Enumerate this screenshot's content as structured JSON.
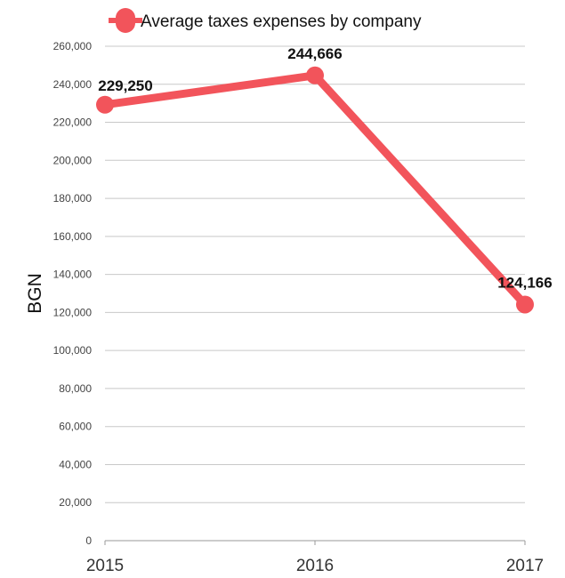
{
  "chart_data": {
    "type": "line",
    "title": "",
    "xlabel": "",
    "ylabel": "BGN",
    "categories": [
      "2015",
      "2016",
      "2017"
    ],
    "series": [
      {
        "name": "Average taxes expenses by company",
        "values": [
          229250,
          244666,
          124166
        ],
        "labels": [
          "229,250",
          "244,666",
          "124,166"
        ],
        "color": "#f2545b"
      }
    ],
    "ylim": [
      0,
      260000
    ],
    "yticks": [
      0,
      20000,
      40000,
      60000,
      80000,
      100000,
      120000,
      140000,
      160000,
      180000,
      200000,
      220000,
      240000,
      260000
    ],
    "ytick_labels": [
      "0",
      "20,000",
      "40,000",
      "60,000",
      "80,000",
      "100,000",
      "120,000",
      "140,000",
      "160,000",
      "180,000",
      "200,000",
      "220,000",
      "240,000",
      "260,000"
    ],
    "grid": true,
    "legend_position": "top"
  },
  "colors": {
    "series": "#f2545b",
    "grid": "#c8c8c8",
    "axis": "#999999"
  }
}
